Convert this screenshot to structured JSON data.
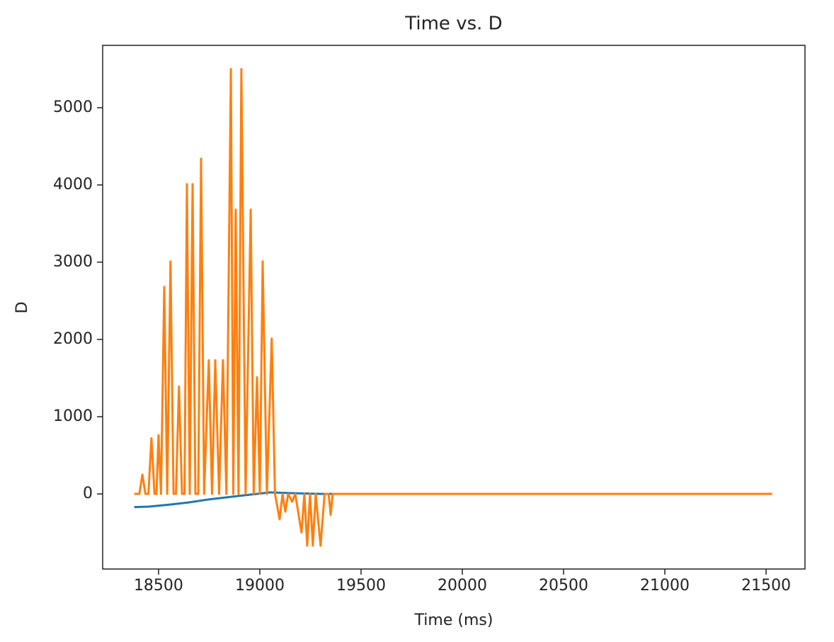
{
  "chart_data": {
    "type": "line",
    "title": "Time vs. D",
    "xlabel": "Time (ms)",
    "ylabel": "D",
    "xlim": [
      18224,
      21692
    ],
    "ylim": [
      -972,
      5807
    ],
    "xticks": [
      18500,
      19000,
      19500,
      20000,
      20500,
      21000,
      21500
    ],
    "yticks": [
      0,
      1000,
      2000,
      3000,
      4000,
      5000
    ],
    "grid": false,
    "series": [
      {
        "color": "#1f77b4",
        "x": [
          18380,
          18450,
          18550,
          18650,
          18750,
          18850,
          18950,
          19000,
          19050,
          19150,
          19300,
          21530
        ],
        "values": [
          -170,
          -165,
          -140,
          -110,
          -70,
          -40,
          -10,
          5,
          20,
          10,
          0,
          0
        ]
      },
      {
        "color": "#ff7f0e",
        "x": [
          18380,
          18405,
          18420,
          18435,
          18450,
          18465,
          18480,
          18490,
          18500,
          18512,
          18528,
          18543,
          18559,
          18574,
          18586,
          18601,
          18616,
          18628,
          18640,
          18654,
          18668,
          18682,
          18696,
          18710,
          18725,
          18748,
          18764,
          18780,
          18799,
          18818,
          18835,
          18857,
          18869,
          18881,
          18895,
          18909,
          18930,
          18955,
          18970,
          18986,
          19000,
          19014,
          19035,
          19059,
          19075,
          19098,
          19112,
          19126,
          19140,
          19160,
          19175,
          19206,
          19220,
          19234,
          19248,
          19262,
          19276,
          19300,
          19320,
          19340,
          19350,
          19360,
          21530
        ],
        "values": [
          0,
          0,
          250,
          0,
          0,
          720,
          0,
          0,
          760,
          0,
          2680,
          0,
          3010,
          0,
          0,
          1390,
          0,
          0,
          4010,
          0,
          4010,
          0,
          0,
          4340,
          0,
          1730,
          0,
          1730,
          0,
          1730,
          0,
          5500,
          0,
          3680,
          0,
          5500,
          0,
          3680,
          0,
          1510,
          0,
          3010,
          0,
          2010,
          0,
          -330,
          0,
          -230,
          0,
          -100,
          0,
          -500,
          0,
          -670,
          0,
          -670,
          0,
          -670,
          0,
          0,
          -270,
          0,
          0
        ]
      }
    ]
  }
}
